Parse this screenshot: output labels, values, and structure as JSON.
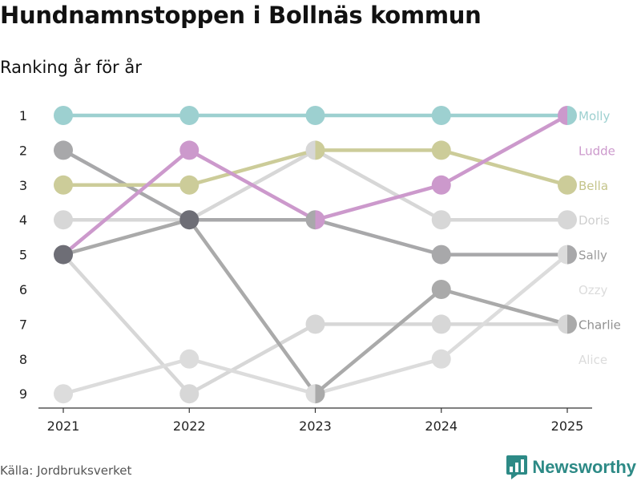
{
  "title": "Hundnamnstoppen i Bollnäs kommun",
  "subtitle": "Ranking år för år",
  "source": "Källa: Jordbruksverket",
  "brand": {
    "name": "Newsworthy"
  },
  "chart_data": {
    "type": "line",
    "subtype": "bump",
    "x": [
      "2021",
      "2022",
      "2023",
      "2024",
      "2025"
    ],
    "ylim": [
      1,
      9
    ],
    "y_reversed": true,
    "y_ticks": [
      "1",
      "2",
      "3",
      "4",
      "5",
      "6",
      "7",
      "8",
      "9"
    ],
    "series": [
      {
        "name": "Molly",
        "color": "#9dd0d0",
        "values": [
          1,
          1,
          1,
          1,
          1
        ]
      },
      {
        "name": "Ludde",
        "color": "#cc99cc",
        "values": [
          5,
          2,
          4,
          3,
          1
        ]
      },
      {
        "name": "Bella",
        "color": "#cccc99",
        "values": [
          3,
          3,
          2,
          2,
          3
        ]
      },
      {
        "name": "Doris",
        "color": "#d7d7d7",
        "values": [
          4,
          4,
          2,
          4,
          4
        ]
      },
      {
        "name": "Sally",
        "color": "#a8a8aa",
        "values": [
          2,
          4,
          4,
          5,
          5
        ]
      },
      {
        "name": "Ozzy",
        "color": "#dcdcdc",
        "values": [
          9,
          8,
          9,
          8,
          5
        ]
      },
      {
        "name": "Charlie",
        "color": "#aaaaaa",
        "values": [
          5,
          4,
          9,
          6,
          7
        ]
      },
      {
        "name": "Alice",
        "color": "#d7d7d7",
        "values": [
          5,
          9,
          7,
          7,
          7
        ]
      }
    ],
    "label_colors": {
      "Molly": "#9dd0d0",
      "Ludde": "#cc99cc",
      "Bella": "#c4c48a",
      "Doris": "#cfcfcf",
      "Sally": "#9a9a9a",
      "Ozzy": "#dcdcdc",
      "Charlie": "#909090",
      "Alice": "#dcdcdc"
    }
  }
}
